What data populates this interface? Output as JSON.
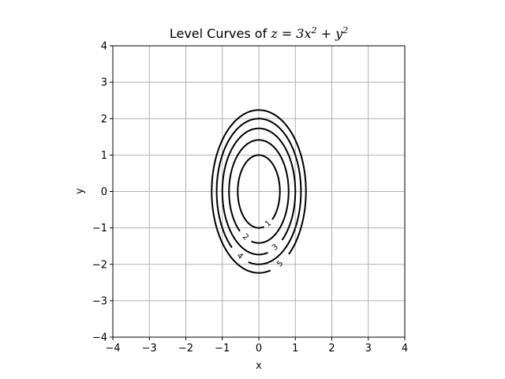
{
  "chart_data": {
    "type": "line",
    "title": "Level Curves of z = 3x² + y²",
    "title_parts": {
      "prefix": "Level Curves of ",
      "equation": "z = 3x",
      "exp1": "2",
      "plus": " + y",
      "exp2": "2"
    },
    "xlabel": "x",
    "ylabel": "y",
    "xlim": [
      -4,
      4
    ],
    "ylim": [
      -4,
      4
    ],
    "xticks": [
      -4,
      -3,
      -2,
      -1,
      0,
      1,
      2,
      3,
      4
    ],
    "yticks": [
      -4,
      -3,
      -2,
      -1,
      0,
      1,
      2,
      3,
      4
    ],
    "xtick_labels": [
      "−4",
      "−3",
      "−2",
      "−1",
      "0",
      "1",
      "2",
      "3",
      "4"
    ],
    "ytick_labels": [
      "−4",
      "−3",
      "−2",
      "−1",
      "0",
      "1",
      "2",
      "3",
      "4"
    ],
    "grid": true,
    "equation": {
      "a": 3,
      "b": 1
    },
    "levels": [
      1,
      2,
      3,
      4,
      5
    ],
    "level_labels": [
      "1",
      "2",
      "3",
      "4",
      "5"
    ],
    "label_sides": [
      "right",
      "left",
      "right",
      "left",
      "right"
    ],
    "line_color": "#000000",
    "grid_color": "#b0b0b0"
  }
}
